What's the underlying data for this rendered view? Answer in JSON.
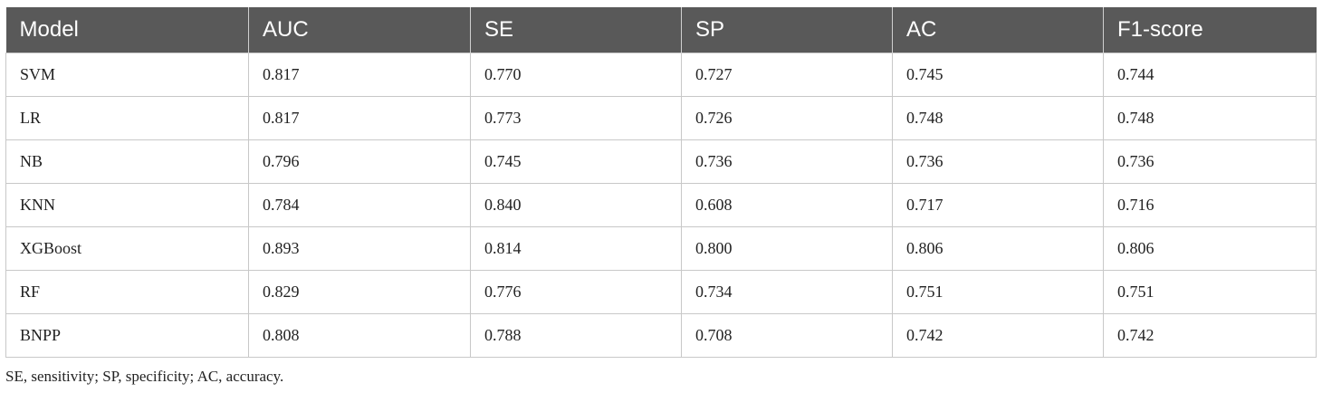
{
  "table": {
    "columns": [
      "Model",
      "AUC",
      "SE",
      "SP",
      "AC",
      "F1-score"
    ],
    "rows": [
      [
        "SVM",
        "0.817",
        "0.770",
        "0.727",
        "0.745",
        "0.744"
      ],
      [
        "LR",
        "0.817",
        "0.773",
        "0.726",
        "0.748",
        "0.748"
      ],
      [
        "NB",
        "0.796",
        "0.745",
        "0.736",
        "0.736",
        "0.736"
      ],
      [
        "KNN",
        "0.784",
        "0.840",
        "0.608",
        "0.717",
        "0.716"
      ],
      [
        "XGBoost",
        "0.893",
        "0.814",
        "0.800",
        "0.806",
        "0.806"
      ],
      [
        "RF",
        "0.829",
        "0.776",
        "0.734",
        "0.751",
        "0.751"
      ],
      [
        "BNPP",
        "0.808",
        "0.788",
        "0.708",
        "0.742",
        "0.742"
      ]
    ]
  },
  "footnote": "SE, sensitivity; SP, specificity; AC, accuracy.",
  "colors": {
    "header_bg": "#595959",
    "header_text": "#ffffff",
    "border": "#c8c8c8"
  }
}
